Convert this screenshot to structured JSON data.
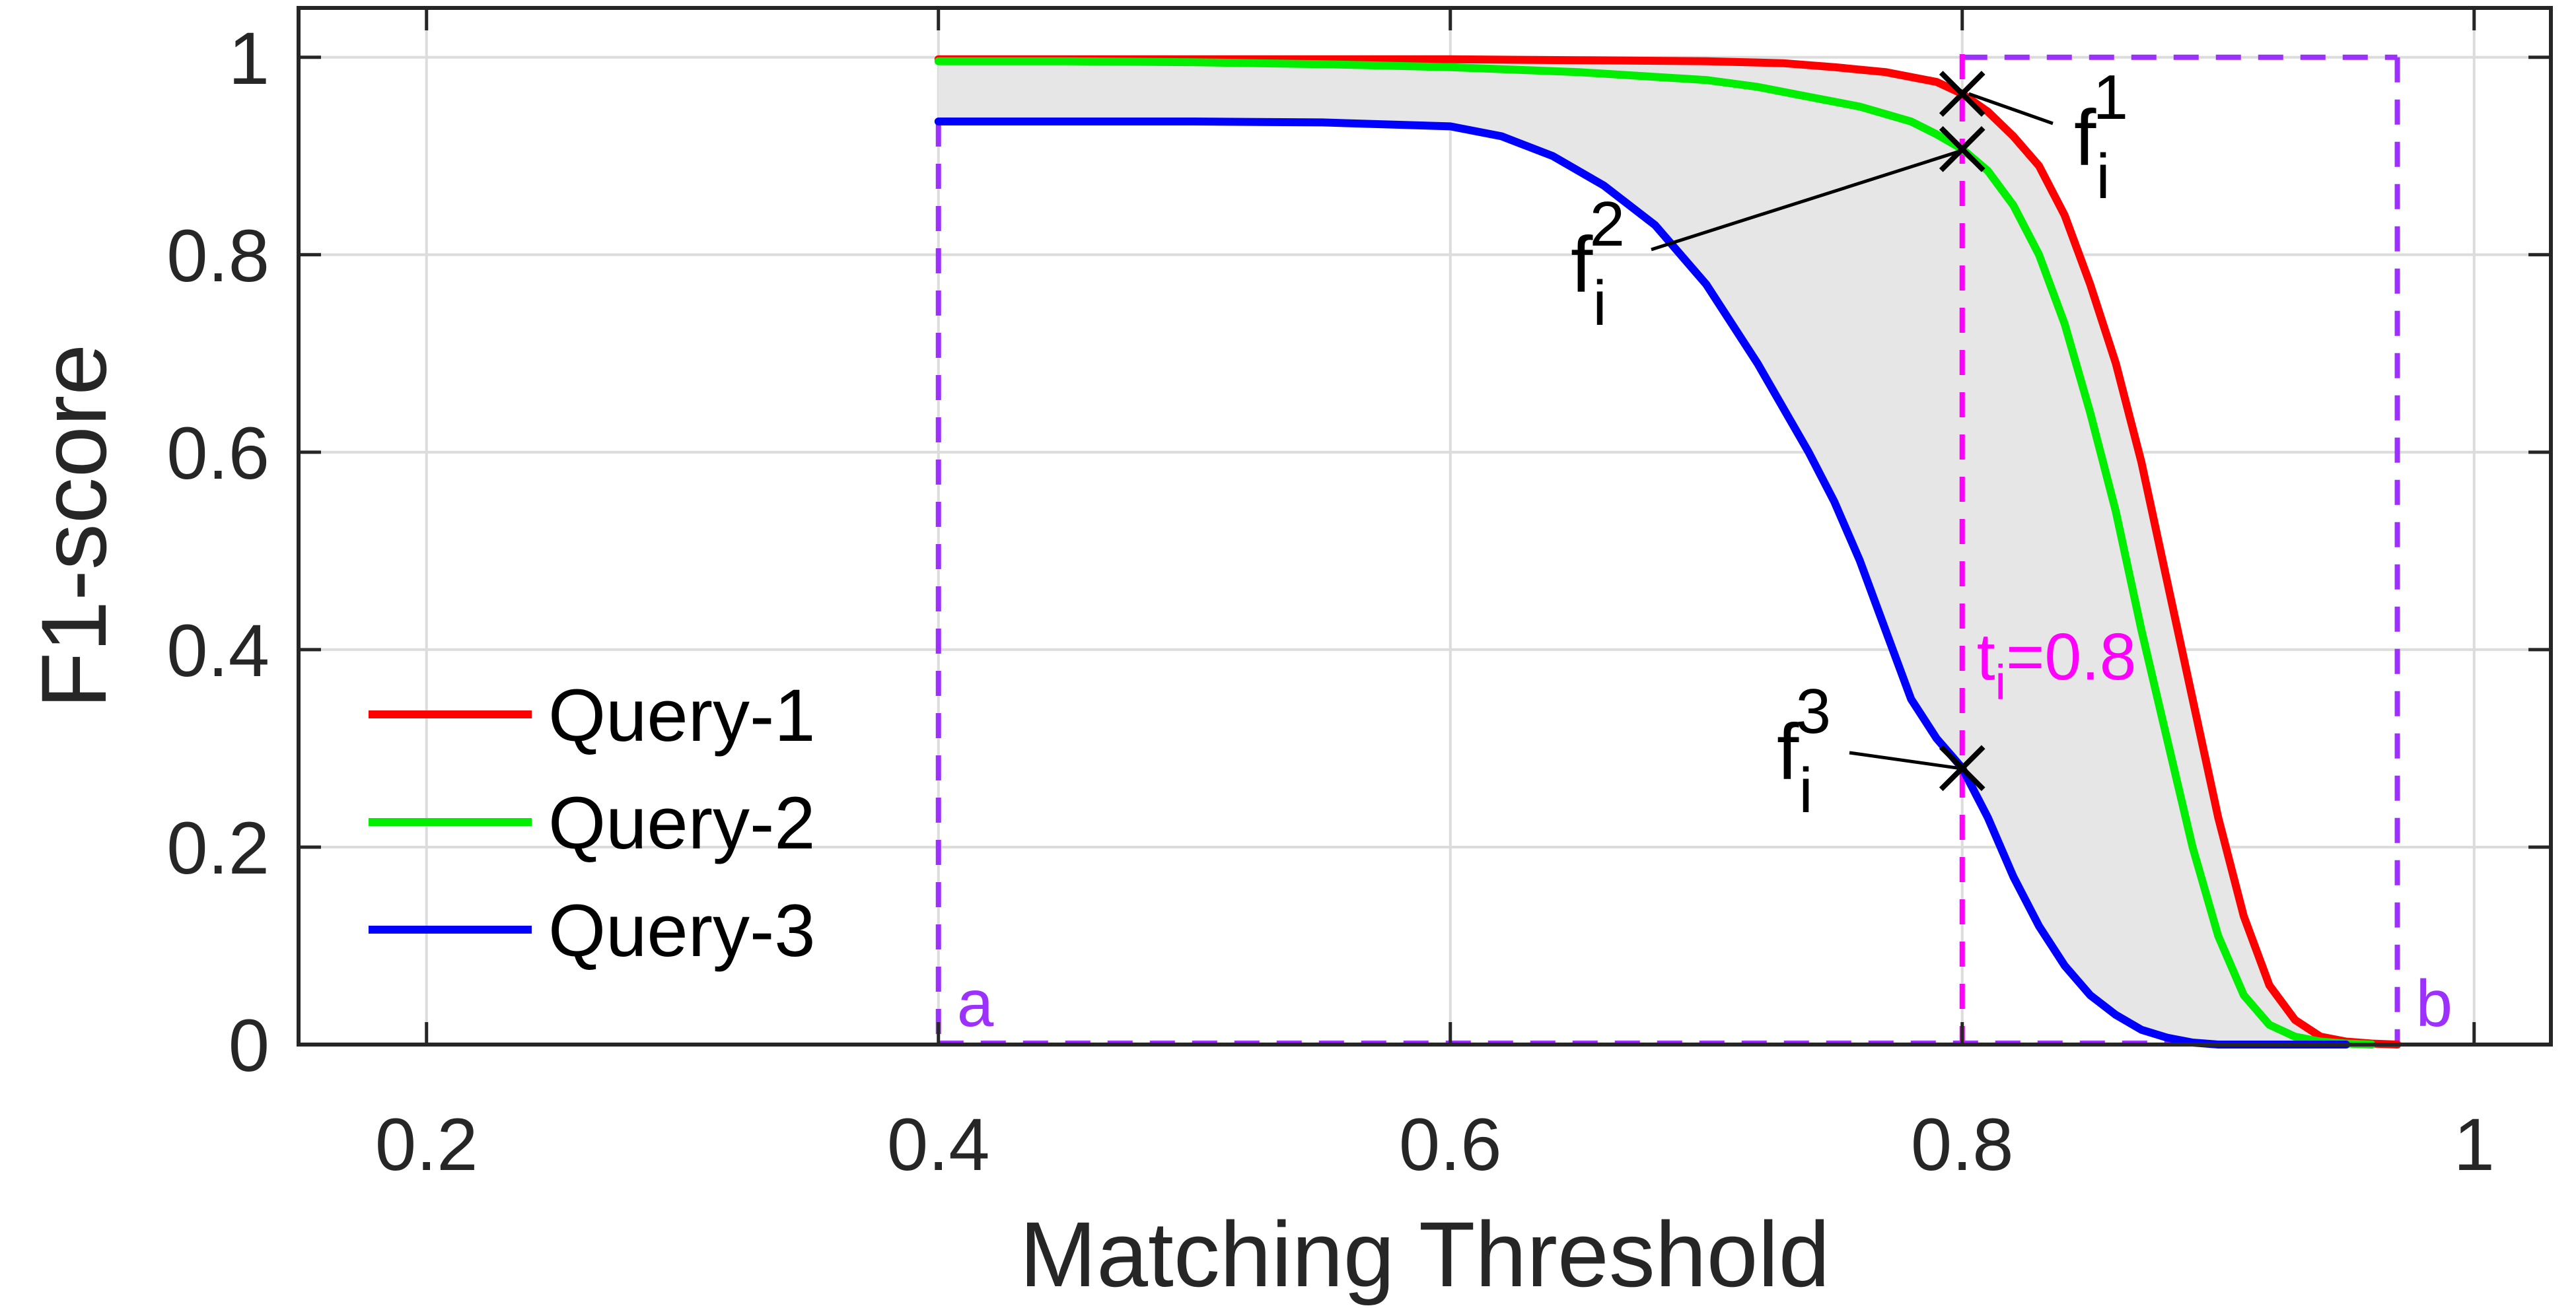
{
  "chart_data": {
    "type": "line",
    "title": "",
    "xlabel": "Matching Threshold",
    "ylabel": "F1-score",
    "xlim": [
      0.15,
      1.03
    ],
    "ylim": [
      0,
      1.05
    ],
    "grid": true,
    "xticks": [
      0.2,
      0.4,
      0.6,
      0.8,
      1
    ],
    "xtick_labels": [
      "0.2",
      "0.4",
      "0.6",
      "0.8",
      "1"
    ],
    "yticks": [
      0,
      0.2,
      0.4,
      0.6,
      0.8,
      1
    ],
    "ytick_labels": [
      "0",
      "0.2",
      "0.4",
      "0.6",
      "0.8",
      "1"
    ],
    "legend": {
      "placement": "bottom-left",
      "entries": [
        "Query-1",
        "Query-2",
        "Query-3"
      ]
    },
    "series": [
      {
        "name": "Query-1",
        "color": "#ff0000",
        "x": [
          0.4,
          0.45,
          0.5,
          0.55,
          0.6,
          0.65,
          0.7,
          0.73,
          0.75,
          0.77,
          0.79,
          0.8,
          0.81,
          0.82,
          0.83,
          0.84,
          0.85,
          0.86,
          0.87,
          0.88,
          0.89,
          0.9,
          0.91,
          0.92,
          0.93,
          0.94,
          0.95,
          0.96,
          0.97
        ],
        "y": [
          0.998,
          0.998,
          0.998,
          0.998,
          0.998,
          0.997,
          0.996,
          0.994,
          0.99,
          0.985,
          0.975,
          0.963,
          0.945,
          0.92,
          0.89,
          0.84,
          0.77,
          0.69,
          0.59,
          0.47,
          0.35,
          0.23,
          0.13,
          0.06,
          0.025,
          0.008,
          0.003,
          0.001,
          0.0
        ]
      },
      {
        "name": "Query-2",
        "color": "#00ee00",
        "x": [
          0.4,
          0.45,
          0.5,
          0.55,
          0.6,
          0.65,
          0.7,
          0.72,
          0.74,
          0.76,
          0.78,
          0.79,
          0.8,
          0.81,
          0.82,
          0.83,
          0.84,
          0.85,
          0.86,
          0.87,
          0.88,
          0.89,
          0.9,
          0.91,
          0.92,
          0.93,
          0.94,
          0.95,
          0.96
        ],
        "y": [
          0.996,
          0.996,
          0.995,
          0.993,
          0.99,
          0.985,
          0.977,
          0.97,
          0.96,
          0.95,
          0.935,
          0.922,
          0.907,
          0.885,
          0.85,
          0.8,
          0.73,
          0.64,
          0.54,
          0.42,
          0.31,
          0.2,
          0.11,
          0.05,
          0.02,
          0.008,
          0.003,
          0.001,
          0.0
        ]
      },
      {
        "name": "Query-3",
        "color": "#0000ff",
        "x": [
          0.4,
          0.45,
          0.5,
          0.55,
          0.6,
          0.62,
          0.64,
          0.66,
          0.68,
          0.7,
          0.72,
          0.74,
          0.75,
          0.76,
          0.77,
          0.78,
          0.79,
          0.8,
          0.81,
          0.82,
          0.83,
          0.84,
          0.85,
          0.86,
          0.87,
          0.88,
          0.89,
          0.9,
          0.92,
          0.95
        ],
        "y": [
          0.935,
          0.935,
          0.935,
          0.934,
          0.93,
          0.92,
          0.9,
          0.87,
          0.83,
          0.77,
          0.69,
          0.6,
          0.55,
          0.49,
          0.42,
          0.35,
          0.31,
          0.28,
          0.23,
          0.17,
          0.12,
          0.08,
          0.05,
          0.03,
          0.015,
          0.007,
          0.002,
          0.0,
          0.0,
          0.0
        ]
      }
    ],
    "annotations": {
      "threshold_label": "t",
      "threshold_subscript": "i",
      "threshold_value": "=0.8",
      "threshold_x": 0.8,
      "threshold_color": "#ff00ff",
      "range_color": "#9b30ff",
      "range_a_label": "a",
      "range_b_label": "b",
      "range_a_x": 0.4,
      "range_b_x": 0.97,
      "range_top_y": 1.0,
      "markers": [
        {
          "base": "f",
          "subscript": "i",
          "superscript": "1",
          "x": 0.8,
          "y": 0.963
        },
        {
          "base": "f",
          "subscript": "i",
          "superscript": "2",
          "x": 0.8,
          "y": 0.907
        },
        {
          "base": "f",
          "subscript": "i",
          "superscript": "3",
          "x": 0.8,
          "y": 0.28
        }
      ]
    }
  }
}
